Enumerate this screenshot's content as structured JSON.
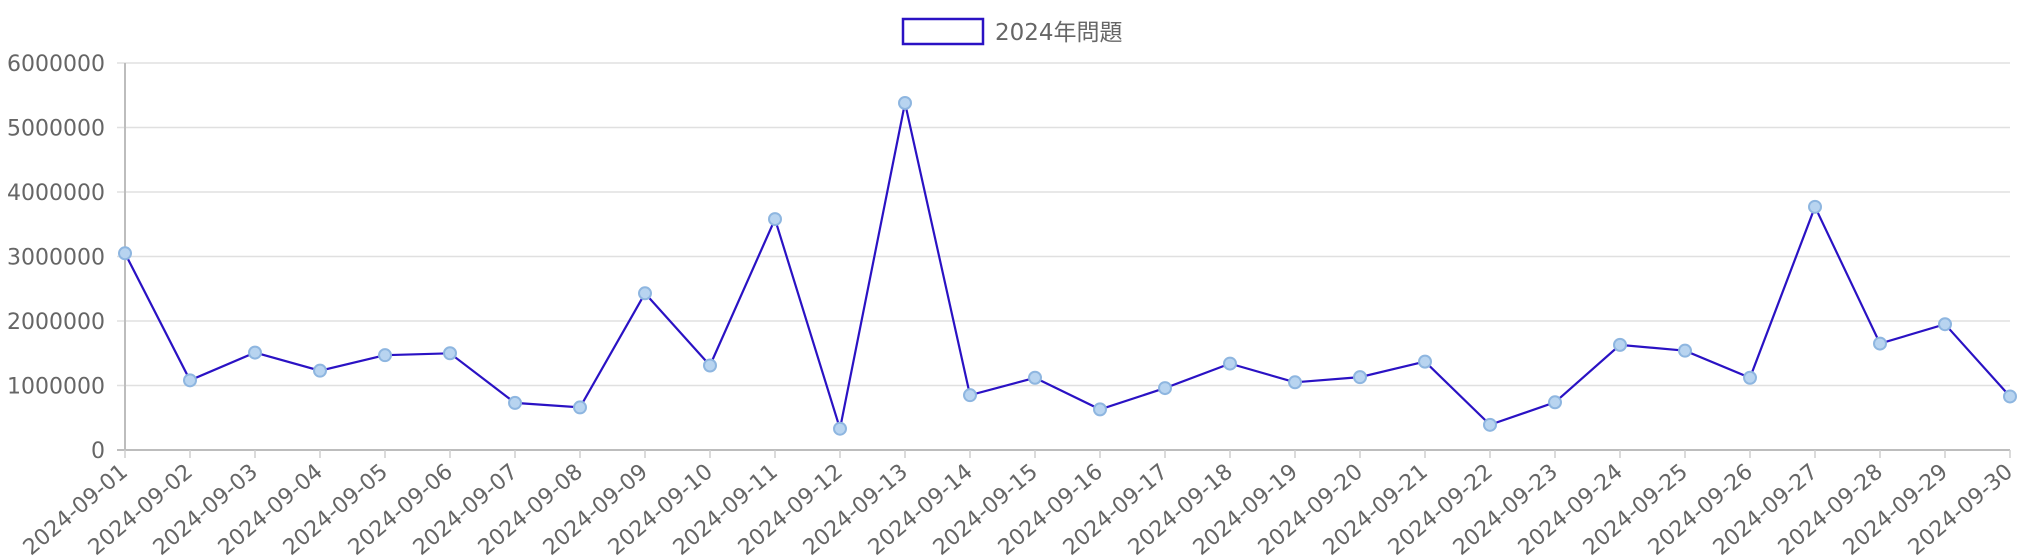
{
  "chart_data": {
    "type": "line",
    "title": "",
    "xlabel": "",
    "ylabel": "",
    "legend_position": "top-center",
    "grid": true,
    "ylim": [
      0,
      6000000
    ],
    "yticks": [
      "0",
      "1000000",
      "2000000",
      "3000000",
      "4000000",
      "5000000",
      "6000000"
    ],
    "categories": [
      "2024-09-01",
      "2024-09-02",
      "2024-09-03",
      "2024-09-04",
      "2024-09-05",
      "2024-09-06",
      "2024-09-07",
      "2024-09-08",
      "2024-09-09",
      "2024-09-10",
      "2024-09-11",
      "2024-09-12",
      "2024-09-13",
      "2024-09-14",
      "2024-09-15",
      "2024-09-16",
      "2024-09-17",
      "2024-09-18",
      "2024-09-19",
      "2024-09-20",
      "2024-09-21",
      "2024-09-22",
      "2024-09-23",
      "2024-09-24",
      "2024-09-25",
      "2024-09-26",
      "2024-09-27",
      "2024-09-28",
      "2024-09-29",
      "2024-09-30"
    ],
    "series": [
      {
        "name": "2024年問題",
        "line_color": "#2a12c4",
        "point_fill": "#b8d4f0",
        "point_stroke": "#8eb6e0",
        "values": [
          3050000,
          1080000,
          1510000,
          1230000,
          1470000,
          1500000,
          730000,
          660000,
          2430000,
          1310000,
          3580000,
          330000,
          5380000,
          850000,
          1120000,
          630000,
          960000,
          1340000,
          1050000,
          1130000,
          1370000,
          390000,
          740000,
          1630000,
          1540000,
          1120000,
          3770000,
          1650000,
          1950000,
          830000
        ]
      }
    ]
  }
}
